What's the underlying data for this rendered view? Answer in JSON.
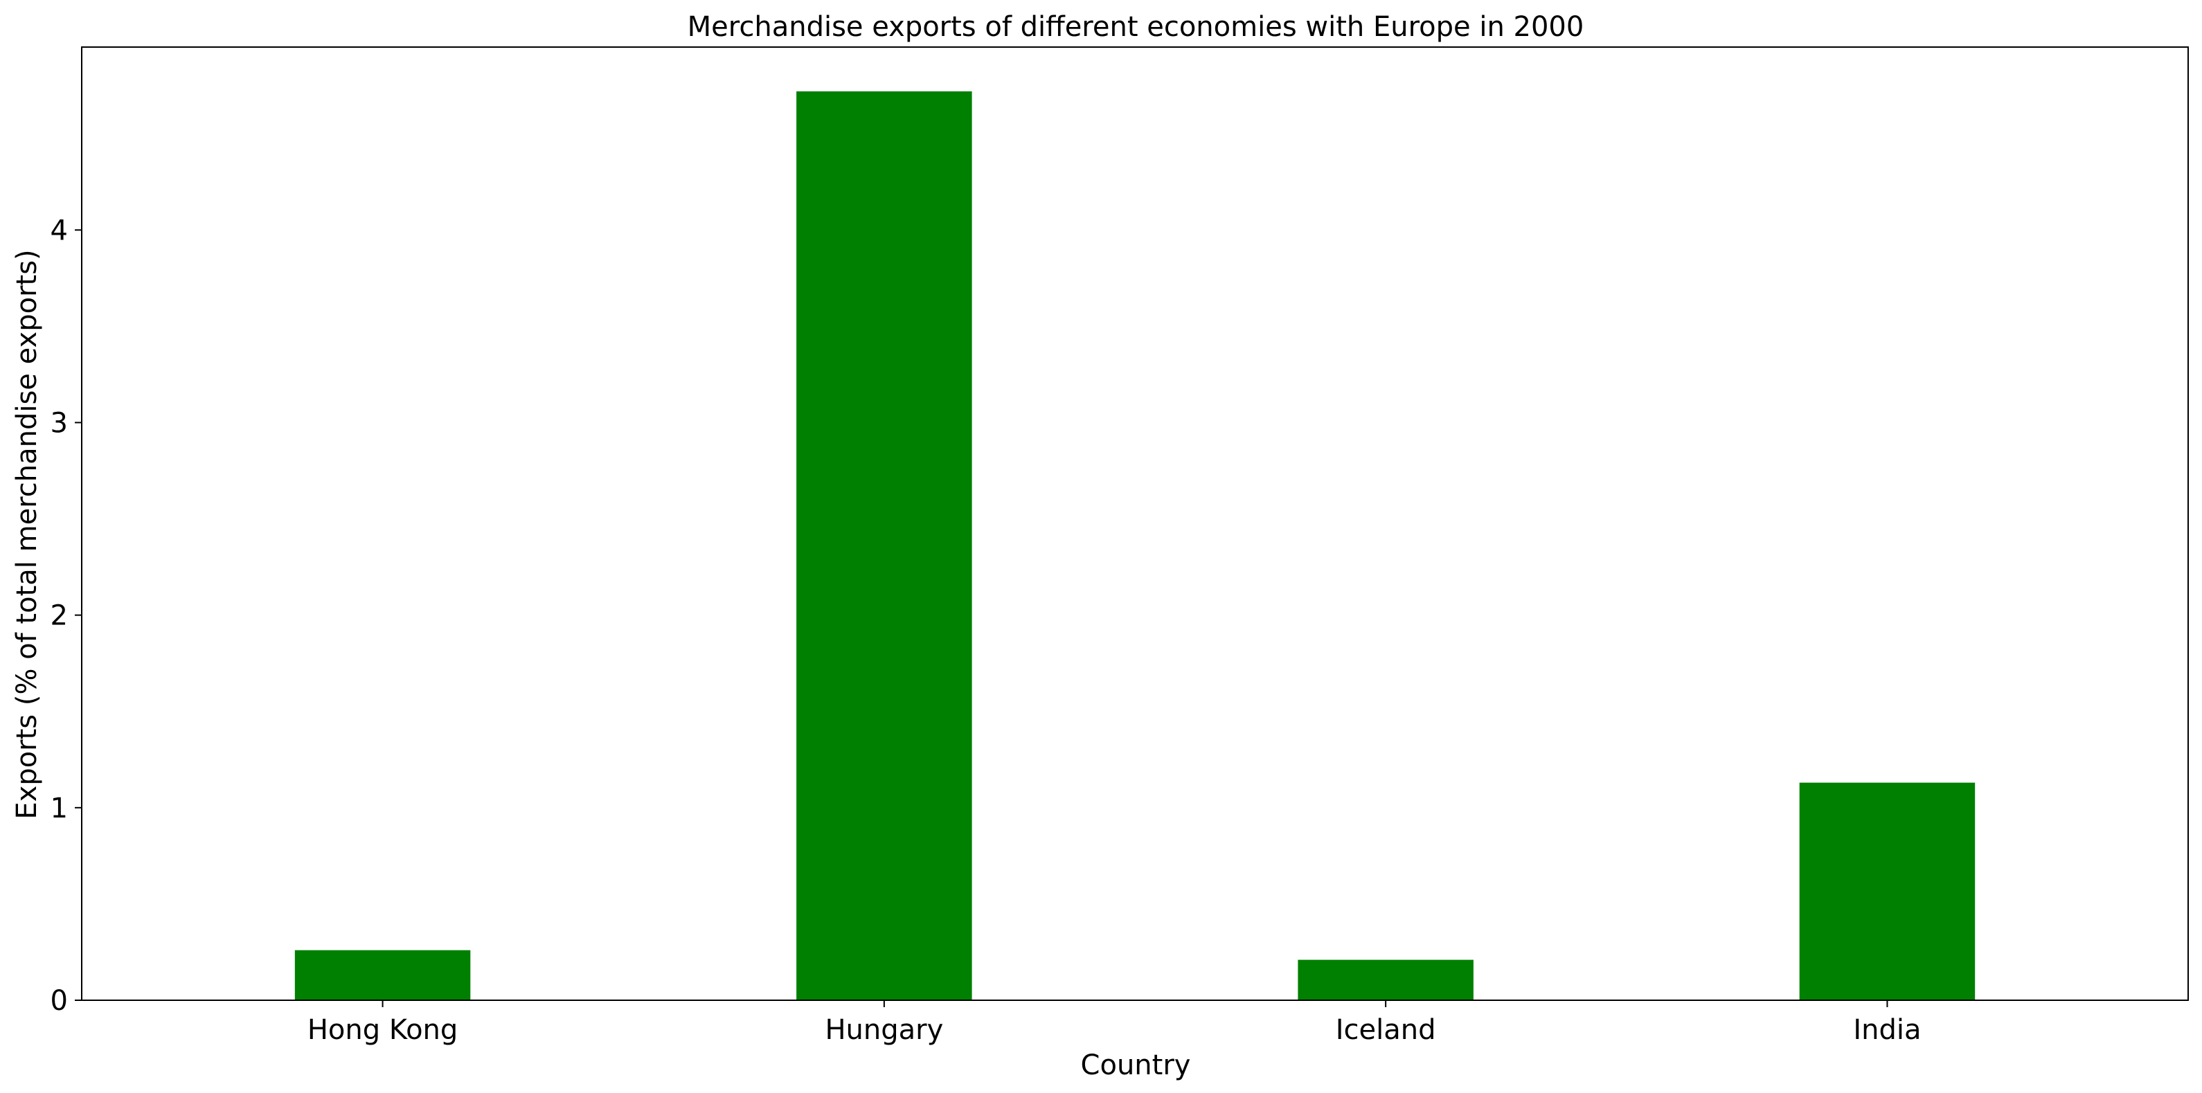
{
  "chart_data": {
    "type": "bar",
    "title": "Merchandise exports of different economies with Europe in 2000",
    "xlabel": "Country",
    "ylabel": "Exports (% of total merchandise exports)",
    "categories": [
      "Hong Kong",
      "Hungary",
      "Iceland",
      "India"
    ],
    "values": [
      0.26,
      4.72,
      0.21,
      1.13
    ],
    "ylim": [
      0,
      4.95
    ],
    "yticks": [
      0,
      1,
      2,
      3,
      4
    ],
    "bar_color": "#008000",
    "grid": false,
    "legend": "none"
  }
}
